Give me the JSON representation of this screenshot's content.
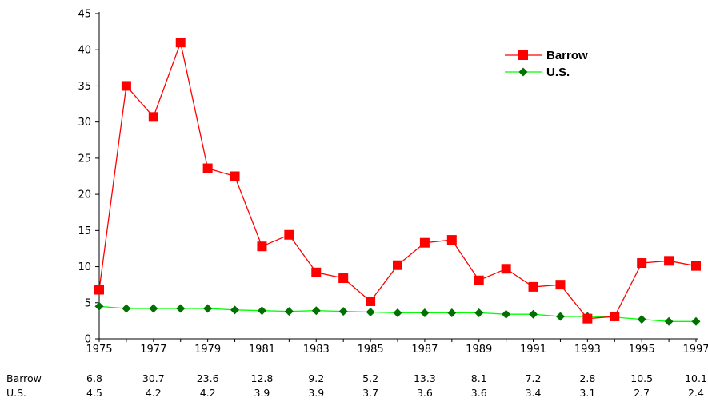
{
  "chart_data": {
    "type": "line",
    "title": "",
    "xlabel": "",
    "ylabel": "",
    "ylim": [
      0,
      45
    ],
    "yticks": [
      0,
      5,
      10,
      15,
      20,
      25,
      30,
      35,
      40,
      45
    ],
    "x": [
      1975,
      1976,
      1977,
      1978,
      1979,
      1980,
      1981,
      1982,
      1983,
      1984,
      1985,
      1986,
      1987,
      1988,
      1989,
      1990,
      1991,
      1992,
      1993,
      1994,
      1995,
      1996,
      1997
    ],
    "xtick_labels": [
      "1975",
      "1977",
      "1979",
      "1981",
      "1983",
      "1985",
      "1987",
      "1989",
      "1991",
      "1993",
      "1995",
      "1997"
    ],
    "grid": false,
    "legend_position": "top-right",
    "series": [
      {
        "name": "Barrow",
        "color": "#ff0000",
        "marker": "square",
        "values": [
          6.8,
          35.0,
          30.7,
          41.0,
          23.6,
          22.5,
          12.8,
          14.4,
          9.2,
          8.4,
          5.2,
          10.2,
          13.3,
          13.7,
          8.1,
          9.7,
          7.2,
          7.5,
          2.8,
          3.1,
          10.5,
          10.8,
          10.1
        ]
      },
      {
        "name": "U.S.",
        "color": "#00ff00",
        "marker_color": "#007000",
        "marker": "diamond",
        "values": [
          4.5,
          4.2,
          4.2,
          4.2,
          4.2,
          4.0,
          3.9,
          3.8,
          3.9,
          3.8,
          3.7,
          3.6,
          3.6,
          3.6,
          3.6,
          3.4,
          3.4,
          3.1,
          3.1,
          3.0,
          2.7,
          2.4,
          2.4
        ]
      }
    ],
    "table": {
      "rows": [
        {
          "label": "Barrow",
          "values": [
            "6.8",
            "30.7",
            "23.6",
            "12.8",
            "9.2",
            "5.2",
            "13.3",
            "8.1",
            "7.2",
            "2.8",
            "10.5",
            "10.1"
          ]
        },
        {
          "label": "U.S.",
          "values": [
            "4.5",
            "4.2",
            "4.2",
            "3.9",
            "3.9",
            "3.7",
            "3.6",
            "3.6",
            "3.4",
            "3.1",
            "2.7",
            "2.4"
          ]
        }
      ]
    }
  }
}
